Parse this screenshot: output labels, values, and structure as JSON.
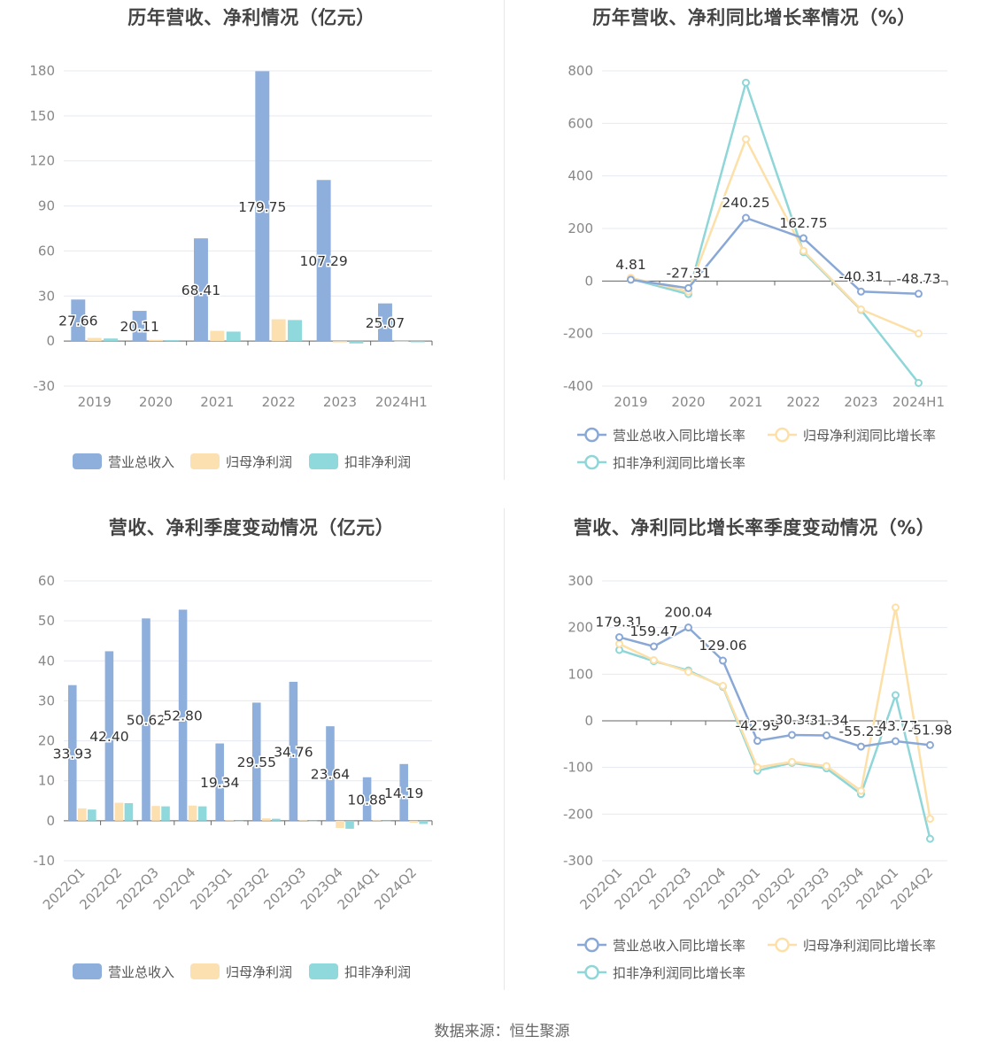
{
  "source": "数据来源：恒生聚源",
  "colors": {
    "revenue": "#8eaedc",
    "net_profit": "#fde0b0",
    "deducted_profit": "#8fd8dc",
    "line_revenue": "#8aa8d6",
    "line_net": "#fde0a8",
    "line_deducted": "#8fd6d8"
  },
  "chart_data": [
    {
      "id": "annual-amounts",
      "type": "bar",
      "title": "历年营收、净利情况（亿元）",
      "categories": [
        "2019",
        "2020",
        "2021",
        "2022",
        "2023",
        "2024H1"
      ],
      "ylim": [
        -30,
        180
      ],
      "yticks": [
        -30,
        0,
        30,
        60,
        90,
        120,
        150,
        180
      ],
      "grid": true,
      "legend_position": "bottom",
      "series": [
        {
          "name": "营业总收入",
          "color_key": "revenue",
          "values": [
            27.66,
            20.11,
            68.41,
            179.75,
            107.29,
            25.07
          ],
          "labels": [
            "27.66",
            "20.11",
            "68.41",
            "179.75",
            "107.29",
            "25.07"
          ]
        },
        {
          "name": "归母净利润",
          "color_key": "net_profit",
          "values": [
            2.1,
            0.8,
            6.8,
            14.5,
            -0.9,
            -0.4
          ]
        },
        {
          "name": "扣非净利润",
          "color_key": "deducted_profit",
          "values": [
            1.7,
            0.6,
            6.3,
            14.0,
            -1.6,
            -0.8
          ]
        }
      ]
    },
    {
      "id": "annual-growth",
      "type": "line",
      "title": "历年营收、净利同比增长率情况（%）",
      "categories": [
        "2019",
        "2020",
        "2021",
        "2022",
        "2023",
        "2024H1"
      ],
      "ylim": [
        -400,
        800
      ],
      "yticks": [
        -400,
        -200,
        0,
        200,
        400,
        600,
        800
      ],
      "grid": true,
      "legend_position": "bottom",
      "series": [
        {
          "name": "营业总收入同比增长率",
          "color_key": "line_revenue",
          "values": [
            4.81,
            -27.31,
            240.25,
            162.75,
            -40.31,
            -48.73
          ],
          "labels": [
            "4.81",
            "-27.31",
            "240.25",
            "162.75",
            "-40.31",
            "-48.73"
          ]
        },
        {
          "name": "归母净利润同比增长率",
          "color_key": "line_net",
          "values": [
            12,
            -40,
            540,
            115,
            -108,
            -200
          ]
        },
        {
          "name": "扣非净利润同比增长率",
          "color_key": "line_deducted",
          "values": [
            8,
            -50,
            755,
            110,
            -110,
            -388
          ]
        }
      ]
    },
    {
      "id": "quarterly-amounts",
      "type": "bar",
      "title": "营收、净利季度变动情况（亿元）",
      "categories": [
        "2022Q1",
        "2022Q2",
        "2022Q3",
        "2022Q4",
        "2023Q1",
        "2023Q2",
        "2023Q3",
        "2023Q4",
        "2024Q1",
        "2024Q2"
      ],
      "ylim": [
        -10,
        60
      ],
      "yticks": [
        -10,
        0,
        10,
        20,
        30,
        40,
        50,
        60
      ],
      "grid": true,
      "legend_position": "bottom",
      "series": [
        {
          "name": "营业总收入",
          "color_key": "revenue",
          "values": [
            33.93,
            42.4,
            50.62,
            52.8,
            19.34,
            29.55,
            34.76,
            23.64,
            10.88,
            14.19
          ],
          "labels": [
            "33.93",
            "42.40",
            "50.62",
            "52.80",
            "19.34",
            "29.55",
            "34.76",
            "23.64",
            "10.88",
            "14.19"
          ]
        },
        {
          "name": "归母净利润",
          "color_key": "net_profit",
          "values": [
            3.1,
            4.5,
            3.7,
            3.8,
            0.1,
            0.6,
            0.1,
            -1.8,
            0.1,
            -0.5
          ]
        },
        {
          "name": "扣非净利润",
          "color_key": "deducted_profit",
          "values": [
            2.8,
            4.4,
            3.6,
            3.6,
            -0.1,
            0.5,
            0.0,
            -2.0,
            -0.1,
            -0.8
          ]
        }
      ]
    },
    {
      "id": "quarterly-growth",
      "type": "line",
      "title": "营收、净利同比增长率季度变动情况（%）",
      "categories": [
        "2022Q1",
        "2022Q2",
        "2022Q3",
        "2022Q4",
        "2023Q1",
        "2023Q2",
        "2023Q3",
        "2023Q4",
        "2024Q1",
        "2024Q2"
      ],
      "ylim": [
        -300,
        300
      ],
      "yticks": [
        -300,
        -200,
        -100,
        0,
        100,
        200,
        300
      ],
      "grid": true,
      "legend_position": "bottom",
      "series": [
        {
          "name": "营业总收入同比增长率",
          "color_key": "line_revenue",
          "values": [
            179.31,
            159.47,
            200.04,
            129.06,
            -42.99,
            -30.3,
            -31.34,
            -55.23,
            -43.77,
            -51.98
          ],
          "labels": [
            "179.31",
            "159.47",
            "200.04",
            "129.06",
            "-42.99",
            "-30.30",
            "-31.34",
            "-55.23",
            "-43.77",
            "-51.98"
          ]
        },
        {
          "name": "归母净利润同比增长率",
          "color_key": "line_net",
          "values": [
            165,
            130,
            105,
            75,
            -100,
            -88,
            -97,
            -150,
            243,
            -210
          ]
        },
        {
          "name": "扣非净利润同比增长率",
          "color_key": "line_deducted",
          "values": [
            152,
            128,
            108,
            73,
            -107,
            -90,
            -102,
            -157,
            55,
            -253
          ]
        }
      ]
    }
  ]
}
